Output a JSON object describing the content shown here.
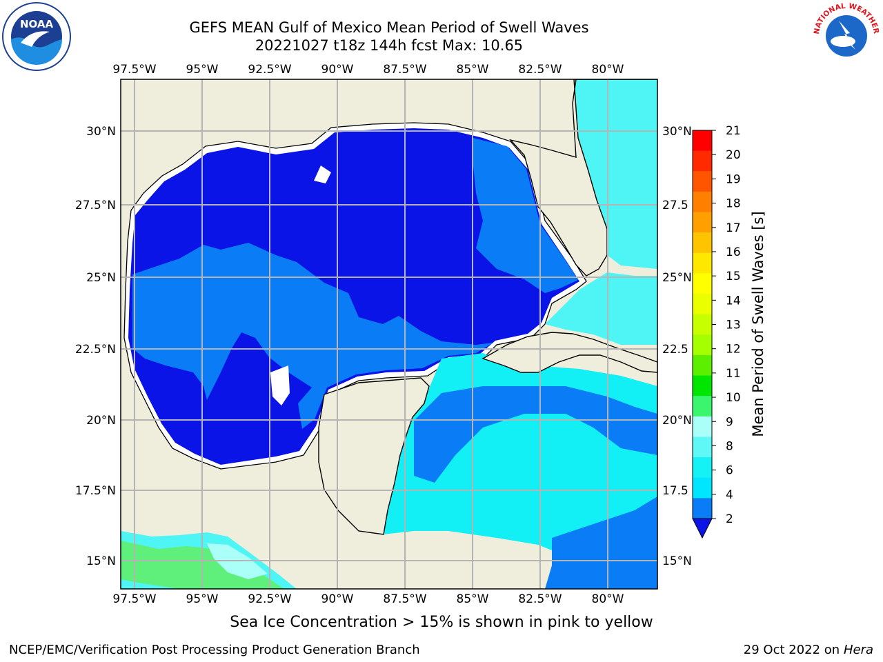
{
  "header": {
    "title_line1": "GEFS MEAN Gulf of Mexico Mean Period of Swell Waves",
    "title_line2": "20221027 t18z 144h fcst   Max: 10.65"
  },
  "map": {
    "lon_labels": [
      "97.5°W",
      "95°W",
      "92.5°W",
      "90°W",
      "87.5°W",
      "85°W",
      "82.5°W",
      "80°W"
    ],
    "lat_labels": [
      "30°N",
      "27.5°N",
      "25°N",
      "22.5°N",
      "20°N",
      "17.5°N",
      "15°N"
    ],
    "lat_labels_right": [
      "30°N",
      "27.5",
      "25°N",
      "22.5",
      "20°N",
      "17.5",
      "15°N"
    ],
    "colors": {
      "land": "#efeddb",
      "deep_blue": "#0a14e6",
      "mid_blue": "#0a7cf5",
      "cyan": "#12f0f6",
      "light_cyan": "#4ff5f5",
      "green": "#5ef07a",
      "grid": "#b4b4b4"
    }
  },
  "colorbar": {
    "label": "Mean Period of Swell Waves [s]",
    "ticks": [
      "21",
      "20",
      "19",
      "18",
      "17",
      "16",
      "15",
      "14",
      "13",
      "12",
      "11",
      "10",
      "9",
      "8",
      "6",
      "4",
      "2"
    ],
    "colors_top_to_bottom": [
      "#ff0000",
      "#ff2a00",
      "#ff5500",
      "#ff7f00",
      "#ffa000",
      "#ffc400",
      "#ffe800",
      "#ffff00",
      "#eaff00",
      "#c8ff00",
      "#a5ff00",
      "#5cf000",
      "#00e600",
      "#3cf56e",
      "#aafff8",
      "#5ff8f6",
      "#14f2f6",
      "#00e6ff",
      "#0a7cf5"
    ],
    "extend_color": "#0a14e6"
  },
  "logos": {
    "noaa_text": "NOAA",
    "nws_text": "NATIONAL WEATHER SERVICE"
  },
  "footer": {
    "subtitle": "Sea Ice Concentration > 15% is shown in pink to yellow",
    "credit": "NCEP/EMC/Verification Post Processing Product Generation Branch",
    "date": "29 Oct 2022 on ",
    "host": "Hera"
  }
}
